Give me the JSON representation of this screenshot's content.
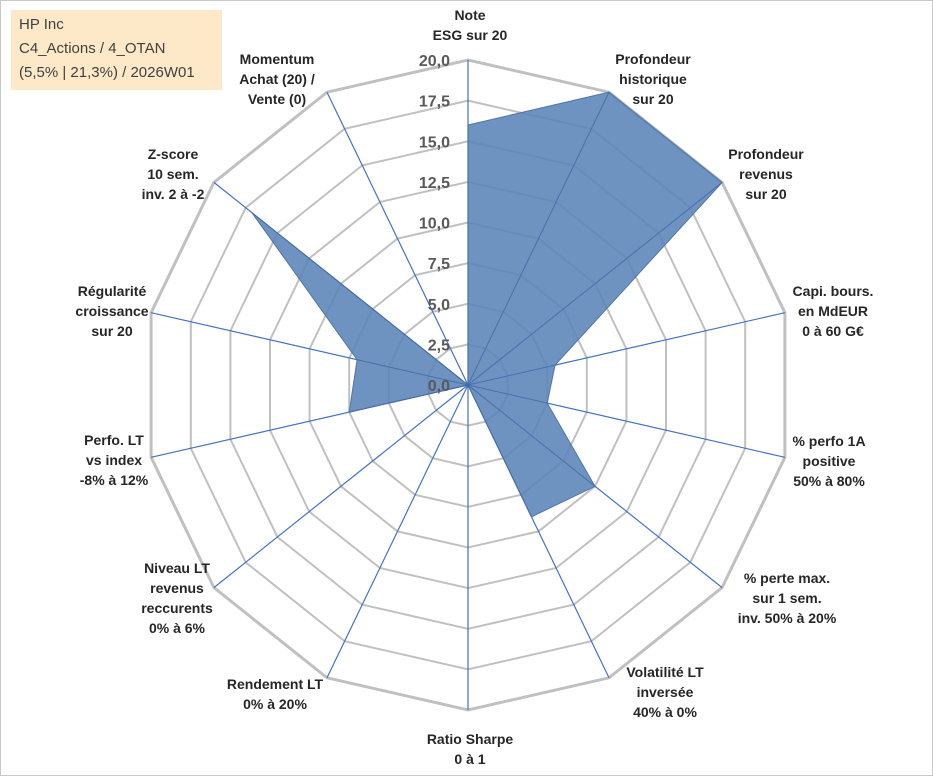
{
  "header": {
    "line1": "HP Inc",
    "line2": "C4_Actions / 4_OTAN",
    "line3": "(5,5% | 21,3%) / 2026W01"
  },
  "colors": {
    "fill": "#5b84b8",
    "grid": "#c0c0c0",
    "spoke": "#4472c4",
    "tick_text": "#595959"
  },
  "chart_data": {
    "type": "radar",
    "title": "HP Inc",
    "rlim": [
      0,
      20
    ],
    "ticks": [
      "0,0",
      "2,5",
      "5,0",
      "7,5",
      "10,0",
      "12,5",
      "15,0",
      "17,5",
      "20,0"
    ],
    "tick_values": [
      0,
      2.5,
      5,
      7.5,
      10,
      12.5,
      15,
      17.5,
      20
    ],
    "axes": [
      {
        "label": [
          "Note",
          "ESG sur 20"
        ],
        "value": 16
      },
      {
        "label": [
          "Profondeur",
          "historique",
          "sur 20"
        ],
        "value": 20
      },
      {
        "label": [
          "Profondeur",
          "revenus",
          "sur 20"
        ],
        "value": 20
      },
      {
        "label": [
          "Capi. bours.",
          "en MdEUR",
          "0 à 60 G€"
        ],
        "value": 5.5
      },
      {
        "label": [
          "% perfo 1A",
          "positive",
          "50% à 80%"
        ],
        "value": 5
      },
      {
        "label": [
          "% perte max.",
          "sur 1 sem.",
          "inv. 50% à 20%"
        ],
        "value": 10
      },
      {
        "label": [
          "Volatilité LT",
          "inversée",
          "40% à 0%"
        ],
        "value": 9
      },
      {
        "label": [
          "Ratio Sharpe",
          "0 à 1"
        ],
        "value": 0
      },
      {
        "label": [
          "Rendement LT",
          "0% à 20%"
        ],
        "value": 0
      },
      {
        "label": [
          "Niveau LT",
          "revenus",
          "reccurents",
          "0% à 6%"
        ],
        "value": 0
      },
      {
        "label": [
          "Perfo. LT",
          "vs index",
          "-8% à 12%"
        ],
        "value": 7.5
      },
      {
        "label": [
          "Régularité",
          "croissance",
          "sur 20"
        ],
        "value": 7
      },
      {
        "label": [
          "Z-score",
          "10 sem.",
          "inv. 2 à -2"
        ],
        "value": 17
      },
      {
        "label": [
          "Momentum",
          "Achat (20) /",
          "Vente (0)"
        ],
        "value": 0
      }
    ]
  }
}
